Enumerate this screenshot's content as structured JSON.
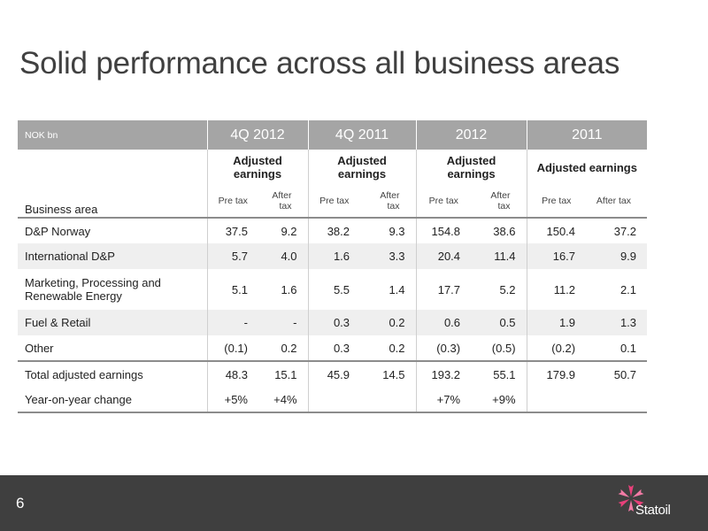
{
  "slide": {
    "title": "Solid performance across all business areas",
    "page_number": "6"
  },
  "brand": {
    "name": "Statoil",
    "accent_color": "#e8407a"
  },
  "table": {
    "unit": "NOK bn",
    "business_area_label": "Business area",
    "periods": [
      "4Q 2012",
      "4Q 2011",
      "2012",
      "2011"
    ],
    "group_label": "Adjusted earnings",
    "pre_label": "Pre tax",
    "after_label": "After tax",
    "rows": [
      {
        "label": "D&P Norway",
        "values": [
          "37.5",
          "9.2",
          "38.2",
          "9.3",
          "154.8",
          "38.6",
          "150.4",
          "37.2"
        ]
      },
      {
        "label": "International D&P",
        "values": [
          "5.7",
          "4.0",
          "1.6",
          "3.3",
          "20.4",
          "11.4",
          "16.7",
          "9.9"
        ]
      },
      {
        "label": "Marketing, Processing and Renewable Energy",
        "values": [
          "5.1",
          "1.6",
          "5.5",
          "1.4",
          "17.7",
          "5.2",
          "11.2",
          "2.1"
        ]
      },
      {
        "label": "Fuel & Retail",
        "values": [
          "-",
          "-",
          "0.3",
          "0.2",
          "0.6",
          "0.5",
          "1.9",
          "1.3"
        ]
      },
      {
        "label": "Other",
        "values": [
          "(0.1)",
          "0.2",
          "0.3",
          "0.2",
          "(0.3)",
          "(0.5)",
          "(0.2)",
          "0.1"
        ]
      },
      {
        "label": "Total adjusted earnings",
        "values": [
          "48.3",
          "15.1",
          "45.9",
          "14.5",
          "193.2",
          "55.1",
          "179.9",
          "50.7"
        ]
      },
      {
        "label": "Year-on-year change",
        "values": [
          "+5%",
          "+4%",
          "",
          "",
          "+7%",
          "+9%",
          "",
          ""
        ]
      }
    ]
  }
}
